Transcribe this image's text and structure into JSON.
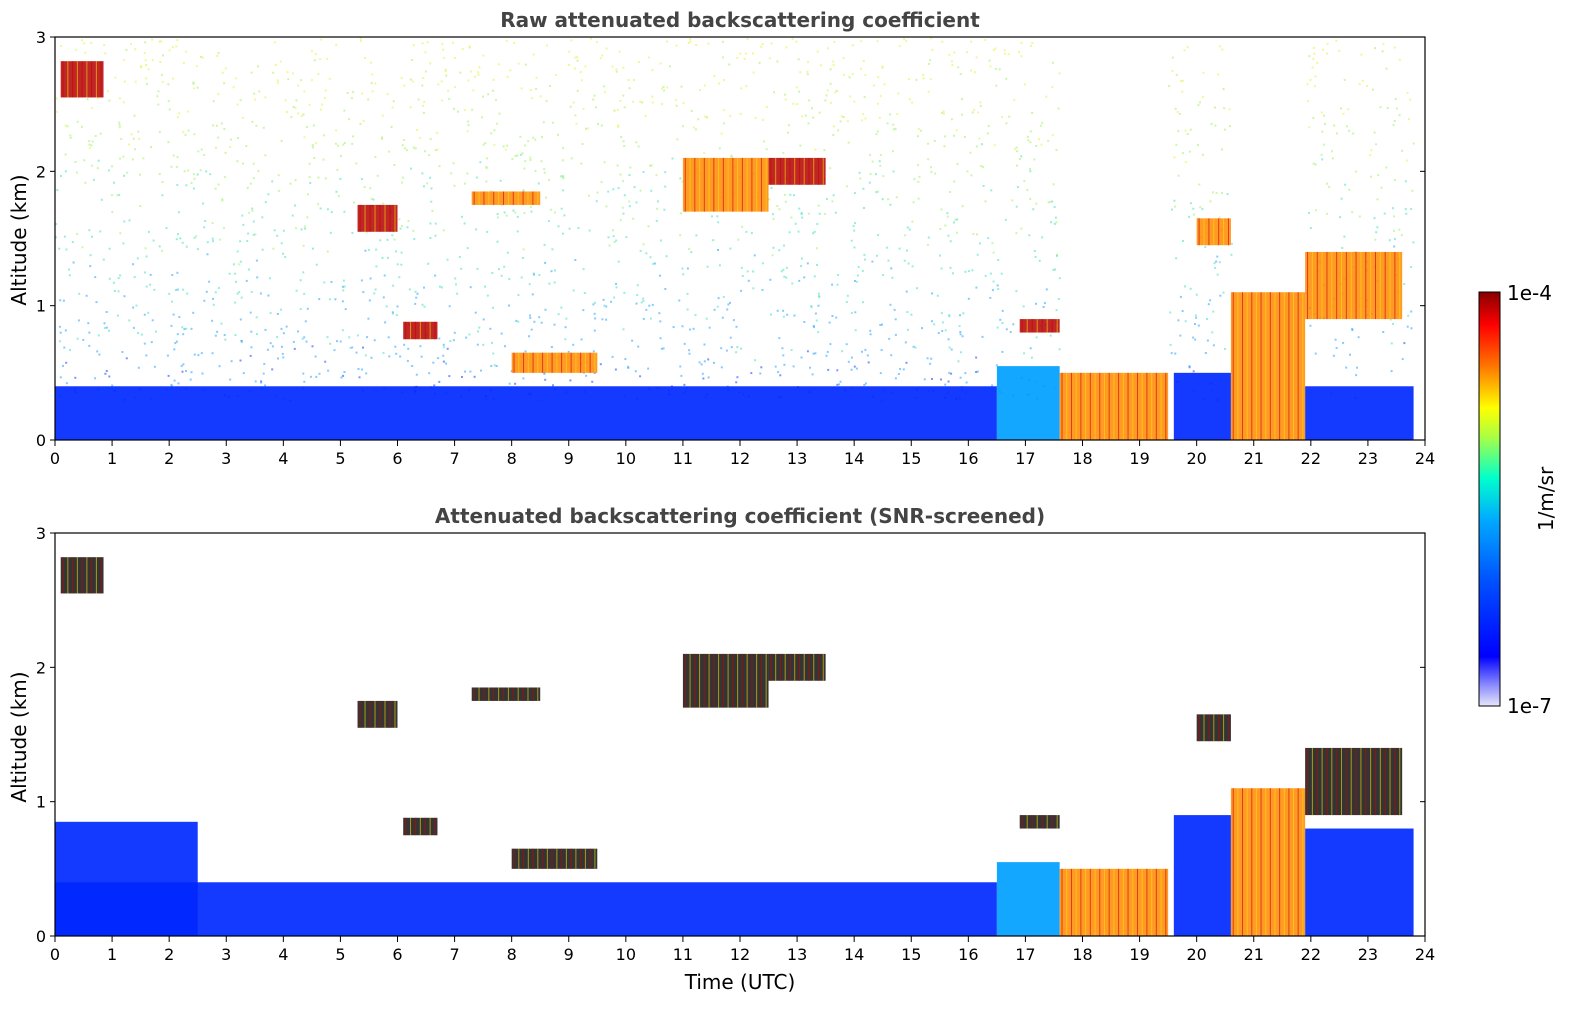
{
  "chart_data": [
    {
      "type": "heatmap",
      "title": "Raw attenuated backscattering coefficient",
      "xlabel": "",
      "ylabel": "Altitude (km)",
      "xlim": [
        0,
        24
      ],
      "ylim": [
        0,
        3
      ],
      "x_ticks": [
        "0",
        "1",
        "2",
        "3",
        "4",
        "5",
        "6",
        "7",
        "8",
        "9",
        "10",
        "11",
        "12",
        "13",
        "14",
        "15",
        "16",
        "17",
        "18",
        "19",
        "20",
        "21",
        "22",
        "23",
        "24"
      ],
      "y_ticks": [
        "0",
        "1",
        "2",
        "3"
      ],
      "screened": false,
      "low_signal_regions": [
        {
          "x": [
            0.0,
            16.5
          ],
          "y": [
            0.0,
            0.4
          ],
          "level": "low"
        },
        {
          "x": [
            16.5,
            17.6
          ],
          "y": [
            0.0,
            0.55
          ],
          "level": "low-mid"
        },
        {
          "x": [
            19.6,
            20.6
          ],
          "y": [
            0.0,
            0.5
          ],
          "level": "low"
        },
        {
          "x": [
            21.9,
            23.8
          ],
          "y": [
            0.0,
            0.4
          ],
          "level": "low"
        }
      ],
      "strong_regions": [
        {
          "x": [
            0.1,
            0.85
          ],
          "y": [
            2.55,
            2.82
          ],
          "level": "max"
        },
        {
          "x": [
            17.6,
            19.5
          ],
          "y": [
            0.0,
            0.5
          ],
          "level": "high"
        },
        {
          "x": [
            20.6,
            21.9
          ],
          "y": [
            0.0,
            1.1
          ],
          "level": "high"
        },
        {
          "x": [
            5.3,
            6.0
          ],
          "y": [
            1.55,
            1.75
          ],
          "level": "max"
        },
        {
          "x": [
            6.1,
            6.7
          ],
          "y": [
            0.75,
            0.88
          ],
          "level": "max"
        },
        {
          "x": [
            7.3,
            8.5
          ],
          "y": [
            1.75,
            1.85
          ],
          "level": "high"
        },
        {
          "x": [
            11.0,
            12.5
          ],
          "y": [
            1.7,
            2.1
          ],
          "level": "high"
        },
        {
          "x": [
            12.5,
            13.5
          ],
          "y": [
            1.9,
            2.1
          ],
          "level": "max"
        },
        {
          "x": [
            8.0,
            9.5
          ],
          "y": [
            0.5,
            0.65
          ],
          "level": "high"
        },
        {
          "x": [
            16.9,
            17.6
          ],
          "y": [
            0.8,
            0.9
          ],
          "level": "max"
        },
        {
          "x": [
            20.0,
            20.6
          ],
          "y": [
            1.45,
            1.65
          ],
          "level": "high"
        },
        {
          "x": [
            21.9,
            23.6
          ],
          "y": [
            0.9,
            1.4
          ],
          "level": "high"
        }
      ]
    },
    {
      "type": "heatmap",
      "title": "Attenuated backscattering coefficient (SNR-screened)",
      "xlabel": "Time (UTC)",
      "ylabel": "Altitude (km)",
      "xlim": [
        0,
        24
      ],
      "ylim": [
        0,
        3
      ],
      "x_ticks": [
        "0",
        "1",
        "2",
        "3",
        "4",
        "5",
        "6",
        "7",
        "8",
        "9",
        "10",
        "11",
        "12",
        "13",
        "14",
        "15",
        "16",
        "17",
        "18",
        "19",
        "20",
        "21",
        "22",
        "23",
        "24"
      ],
      "y_ticks": [
        "0",
        "1",
        "2",
        "3"
      ],
      "screened": true,
      "low_signal_regions": [
        {
          "x": [
            0.0,
            16.5
          ],
          "y": [
            0.0,
            0.4
          ],
          "level": "low"
        },
        {
          "x": [
            0.0,
            2.5
          ],
          "y": [
            0.0,
            0.85
          ],
          "level": "low"
        },
        {
          "x": [
            16.5,
            17.6
          ],
          "y": [
            0.0,
            0.55
          ],
          "level": "low-mid"
        },
        {
          "x": [
            19.6,
            20.6
          ],
          "y": [
            0.0,
            0.9
          ],
          "level": "low"
        },
        {
          "x": [
            21.9,
            23.8
          ],
          "y": [
            0.0,
            0.8
          ],
          "level": "low"
        }
      ],
      "strong_regions": [
        {
          "x": [
            0.1,
            0.85
          ],
          "y": [
            2.55,
            2.82
          ],
          "level": "saturated"
        },
        {
          "x": [
            17.6,
            19.5
          ],
          "y": [
            0.0,
            0.5
          ],
          "level": "high"
        },
        {
          "x": [
            20.6,
            21.9
          ],
          "y": [
            0.0,
            1.1
          ],
          "level": "high"
        },
        {
          "x": [
            5.3,
            6.0
          ],
          "y": [
            1.55,
            1.75
          ],
          "level": "saturated"
        },
        {
          "x": [
            6.1,
            6.7
          ],
          "y": [
            0.75,
            0.88
          ],
          "level": "saturated"
        },
        {
          "x": [
            7.3,
            8.5
          ],
          "y": [
            1.75,
            1.85
          ],
          "level": "saturated"
        },
        {
          "x": [
            11.0,
            12.5
          ],
          "y": [
            1.7,
            2.1
          ],
          "level": "saturated"
        },
        {
          "x": [
            12.5,
            13.5
          ],
          "y": [
            1.9,
            2.1
          ],
          "level": "saturated"
        },
        {
          "x": [
            8.0,
            9.5
          ],
          "y": [
            0.5,
            0.65
          ],
          "level": "saturated"
        },
        {
          "x": [
            16.9,
            17.6
          ],
          "y": [
            0.8,
            0.9
          ],
          "level": "saturated"
        },
        {
          "x": [
            20.0,
            20.6
          ],
          "y": [
            1.45,
            1.65
          ],
          "level": "saturated"
        },
        {
          "x": [
            21.9,
            23.6
          ],
          "y": [
            0.9,
            1.4
          ],
          "level": "saturated"
        }
      ]
    }
  ],
  "colorbar": {
    "label": "1/m/sr",
    "max_label": "1e-4",
    "min_label": "1e-7",
    "colors": [
      "#e6e6fa",
      "#0000ff",
      "#00aaff",
      "#00ffcc",
      "#ffff00",
      "#ff7700",
      "#ff0000",
      "#880000"
    ]
  }
}
